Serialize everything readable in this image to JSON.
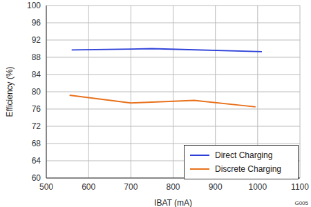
{
  "chart_data": {
    "type": "line",
    "x_label": "IBAT (mA)",
    "y_label": "Efficiency (%)",
    "series": [
      {
        "name": "Direct Charging",
        "color": "#2b3fd8",
        "x": [
          560,
          700,
          750,
          1010
        ],
        "values": [
          89.7,
          89.9,
          90.0,
          89.3
        ]
      },
      {
        "name": "Discrete Charging",
        "color": "#e8701a",
        "x": [
          555,
          700,
          850,
          995
        ],
        "values": [
          79.2,
          77.4,
          78.0,
          76.5
        ]
      }
    ],
    "xlim": [
      500,
      1100
    ],
    "xticks": [
      500,
      600,
      700,
      800,
      900,
      1000,
      1100
    ],
    "ylim": [
      60,
      100
    ],
    "yticks": [
      60,
      64,
      68,
      72,
      76,
      80,
      84,
      88,
      92,
      96,
      100
    ],
    "grid": true,
    "legend": "lower right",
    "annotations": [
      "G005"
    ]
  }
}
